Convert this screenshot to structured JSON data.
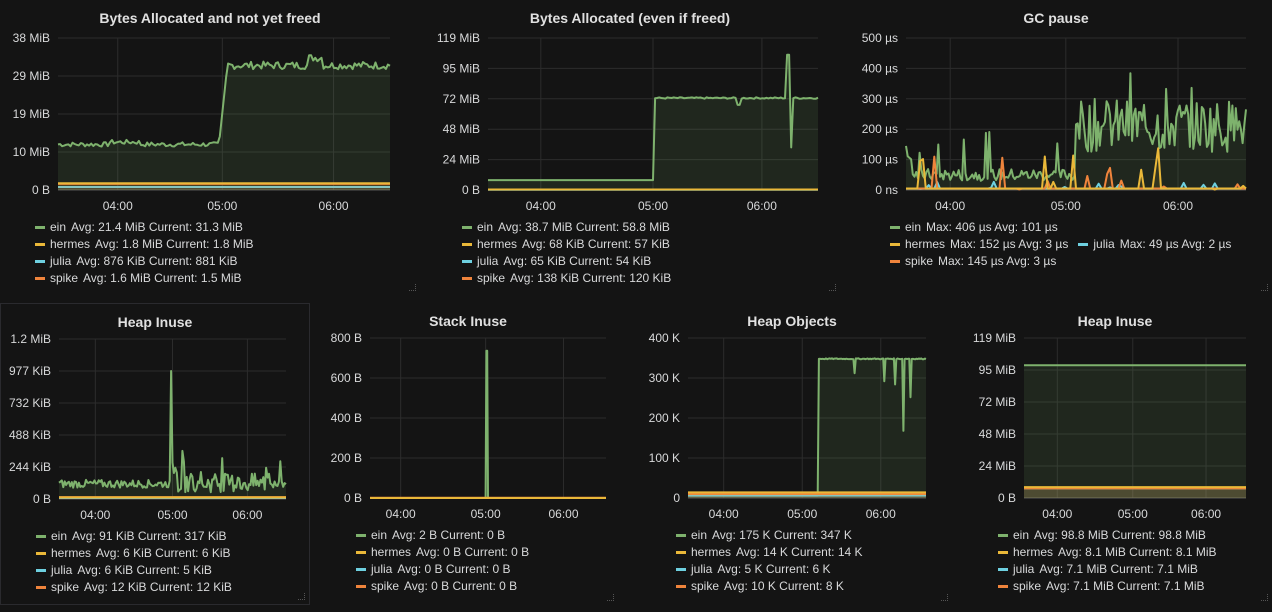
{
  "colors": {
    "ein": "#7eb26d",
    "hermes": "#eab839",
    "julia": "#6ed0e0",
    "spike": "#ef843c",
    "grid": "#2c2c2c",
    "axis": "#555555"
  },
  "panels": [
    {
      "title": "Bytes Allocated and not yet freed",
      "y_ticks": [
        "38 MiB",
        "29 MiB",
        "19 MiB",
        "10 MiB",
        "0 B"
      ],
      "x_ticks": [
        "04:00",
        "05:00",
        "06:00"
      ],
      "legend": [
        {
          "series": "ein",
          "text": "ein",
          "stats": "Avg: 21.4 MiB  Current: 31.3 MiB"
        },
        {
          "series": "hermes",
          "text": "hermes",
          "stats": "Avg: 1.8 MiB  Current: 1.8 MiB"
        },
        {
          "series": "julia",
          "text": "julia",
          "stats": "Avg: 876 KiB  Current: 881 KiB"
        },
        {
          "series": "spike",
          "text": "spike",
          "stats": "Avg: 1.6 MiB  Current: 1.5 MiB"
        }
      ]
    },
    {
      "title": "Bytes Allocated (even if freed)",
      "y_ticks": [
        "119 MiB",
        "95 MiB",
        "72 MiB",
        "48 MiB",
        "24 MiB",
        "0 B"
      ],
      "x_ticks": [
        "04:00",
        "05:00",
        "06:00"
      ],
      "legend": [
        {
          "series": "ein",
          "text": "ein",
          "stats": "Avg: 38.7 MiB  Current: 58.8 MiB"
        },
        {
          "series": "hermes",
          "text": "hermes",
          "stats": "Avg: 68 KiB  Current: 57 KiB"
        },
        {
          "series": "julia",
          "text": "julia",
          "stats": "Avg: 65 KiB  Current: 54 KiB"
        },
        {
          "series": "spike",
          "text": "spike",
          "stats": "Avg: 138 KiB  Current: 120 KiB"
        }
      ]
    },
    {
      "title": "GC pause",
      "y_ticks": [
        "500 µs",
        "400 µs",
        "300 µs",
        "200 µs",
        "100 µs",
        "0 ns"
      ],
      "x_ticks": [
        "04:00",
        "05:00",
        "06:00"
      ],
      "legend": [
        {
          "series": "ein",
          "text": "ein",
          "stats": "Max: 406 µs  Avg: 101 µs"
        },
        {
          "series": "hermes",
          "text": "hermes",
          "stats": "Max: 152 µs  Avg: 3 µs"
        },
        {
          "series": "julia",
          "text": "julia",
          "stats": "Max: 49 µs  Avg: 2 µs"
        },
        {
          "series": "spike",
          "text": "spike",
          "stats": "Max: 145 µs  Avg: 3 µs"
        }
      ]
    },
    {
      "title": "Heap Inuse",
      "y_ticks": [
        "1.2 MiB",
        "977 KiB",
        "732 KiB",
        "488 KiB",
        "244 KiB",
        "0 B"
      ],
      "x_ticks": [
        "04:00",
        "05:00",
        "06:00"
      ],
      "legend": [
        {
          "series": "ein",
          "text": "ein",
          "stats": "Avg: 91 KiB  Current: 317 KiB"
        },
        {
          "series": "hermes",
          "text": "hermes",
          "stats": "Avg: 6 KiB  Current: 6 KiB"
        },
        {
          "series": "julia",
          "text": "julia",
          "stats": "Avg: 6 KiB  Current: 5 KiB"
        },
        {
          "series": "spike",
          "text": "spike",
          "stats": "Avg: 12 KiB  Current: 12 KiB"
        }
      ]
    },
    {
      "title": "Stack Inuse",
      "y_ticks": [
        "800 B",
        "600 B",
        "400 B",
        "200 B",
        "0 B"
      ],
      "x_ticks": [
        "04:00",
        "05:00",
        "06:00"
      ],
      "legend": [
        {
          "series": "ein",
          "text": "ein",
          "stats": "Avg: 2 B  Current: 0 B"
        },
        {
          "series": "hermes",
          "text": "hermes",
          "stats": "Avg: 0 B  Current: 0 B"
        },
        {
          "series": "julia",
          "text": "julia",
          "stats": "Avg: 0 B  Current: 0 B"
        },
        {
          "series": "spike",
          "text": "spike",
          "stats": "Avg: 0 B  Current: 0 B"
        }
      ]
    },
    {
      "title": "Heap Objects",
      "y_ticks": [
        "400 K",
        "300 K",
        "200 K",
        "100 K",
        "0"
      ],
      "x_ticks": [
        "04:00",
        "05:00",
        "06:00"
      ],
      "legend": [
        {
          "series": "ein",
          "text": "ein",
          "stats": "Avg: 175 K  Current: 347 K"
        },
        {
          "series": "hermes",
          "text": "hermes",
          "stats": "Avg: 14 K  Current: 14 K"
        },
        {
          "series": "julia",
          "text": "julia",
          "stats": "Avg: 5 K  Current: 6 K"
        },
        {
          "series": "spike",
          "text": "spike",
          "stats": "Avg: 10 K  Current: 8 K"
        }
      ]
    },
    {
      "title": "Heap Inuse",
      "y_ticks": [
        "119 MiB",
        "95 MiB",
        "72 MiB",
        "48 MiB",
        "24 MiB",
        "0 B"
      ],
      "x_ticks": [
        "04:00",
        "05:00",
        "06:00"
      ],
      "legend": [
        {
          "series": "ein",
          "text": "ein",
          "stats": "Avg: 98.8 MiB  Current: 98.8 MiB"
        },
        {
          "series": "hermes",
          "text": "hermes",
          "stats": "Avg: 8.1 MiB  Current: 8.1 MiB"
        },
        {
          "series": "julia",
          "text": "julia",
          "stats": "Avg: 7.1 MiB  Current: 7.1 MiB"
        },
        {
          "series": "spike",
          "text": "spike",
          "stats": "Avg: 7.1 MiB  Current: 7.1 MiB"
        }
      ]
    }
  ]
}
